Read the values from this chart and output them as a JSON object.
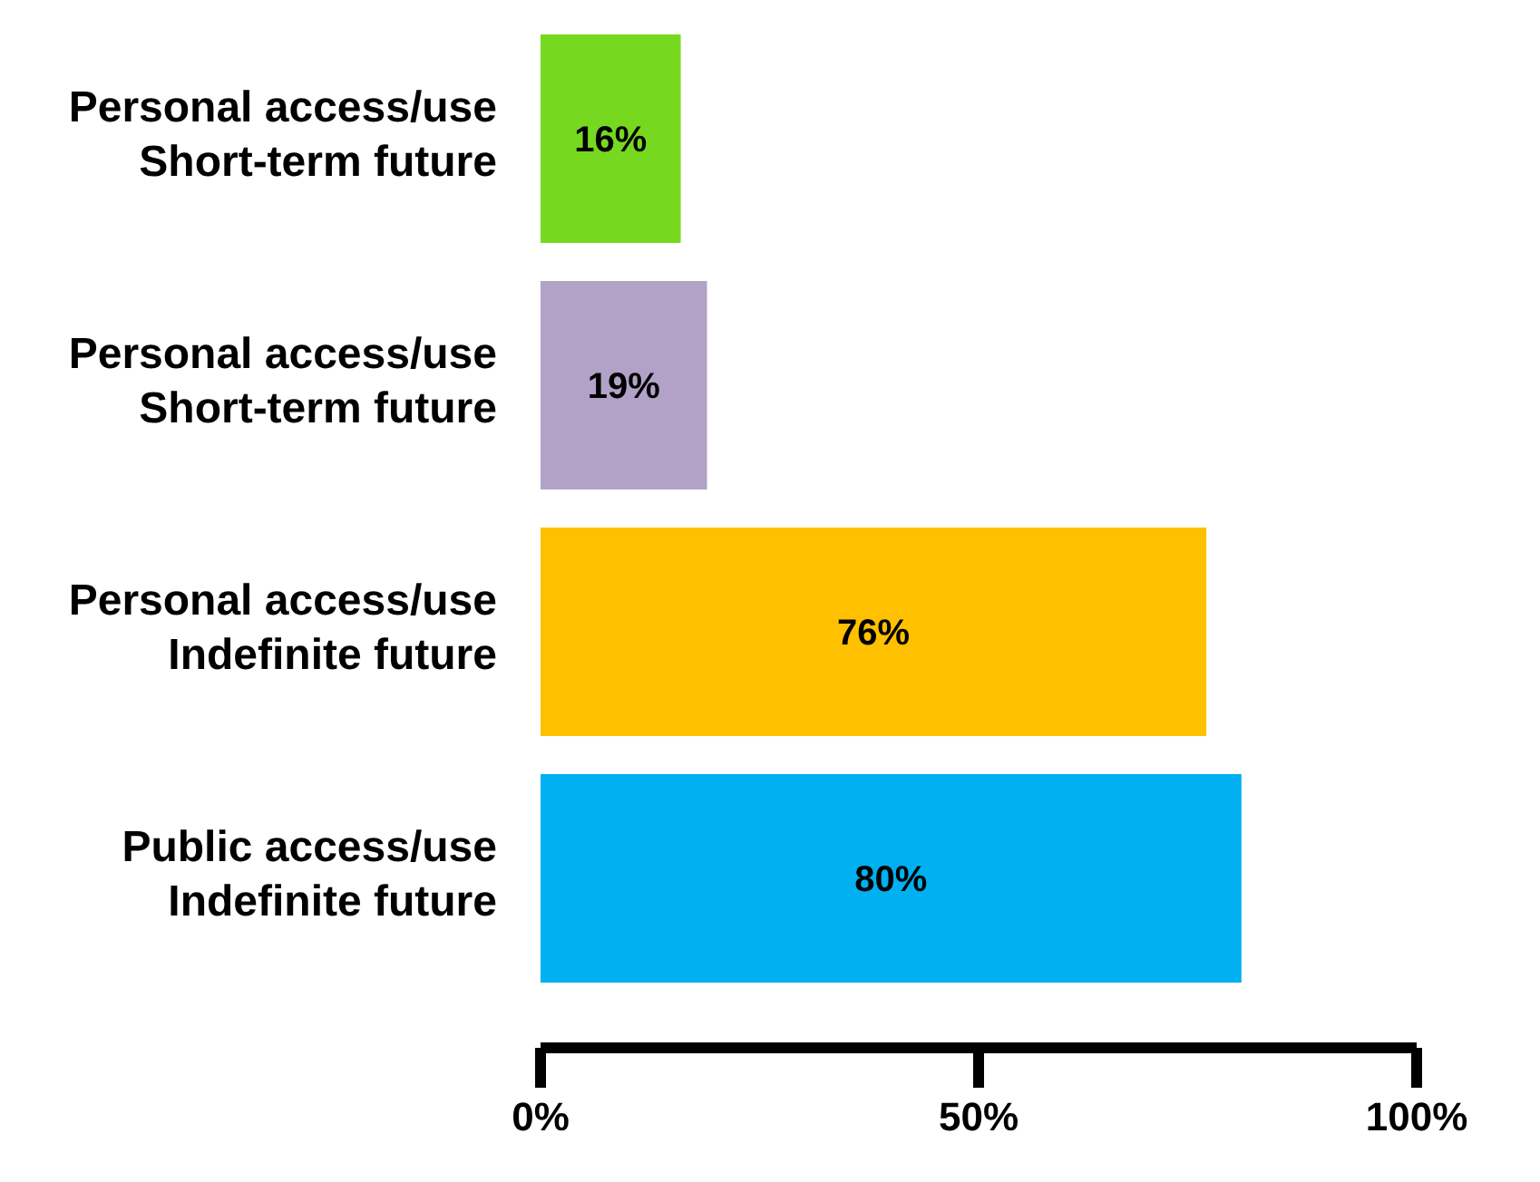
{
  "chart_data": {
    "type": "bar",
    "orientation": "horizontal",
    "categories": [
      "Personal access/use\nShort-term future",
      "Personal access/use\nShort-term future",
      "Personal access/use\nIndefinite future",
      "Public access/use\nIndefinite future"
    ],
    "values": [
      16,
      19,
      76,
      80
    ],
    "colors": [
      "#77d91f",
      "#b2a2c7",
      "#ffc000",
      "#00b0f0"
    ],
    "value_labels": [
      "16%",
      "19%",
      "76%",
      "80%"
    ],
    "xlim": [
      0,
      100
    ],
    "xticks": [
      {
        "value": 0,
        "label": "0%"
      },
      {
        "value": 50,
        "label": "50%"
      },
      {
        "value": 100,
        "label": "100%"
      }
    ],
    "grid": false
  }
}
